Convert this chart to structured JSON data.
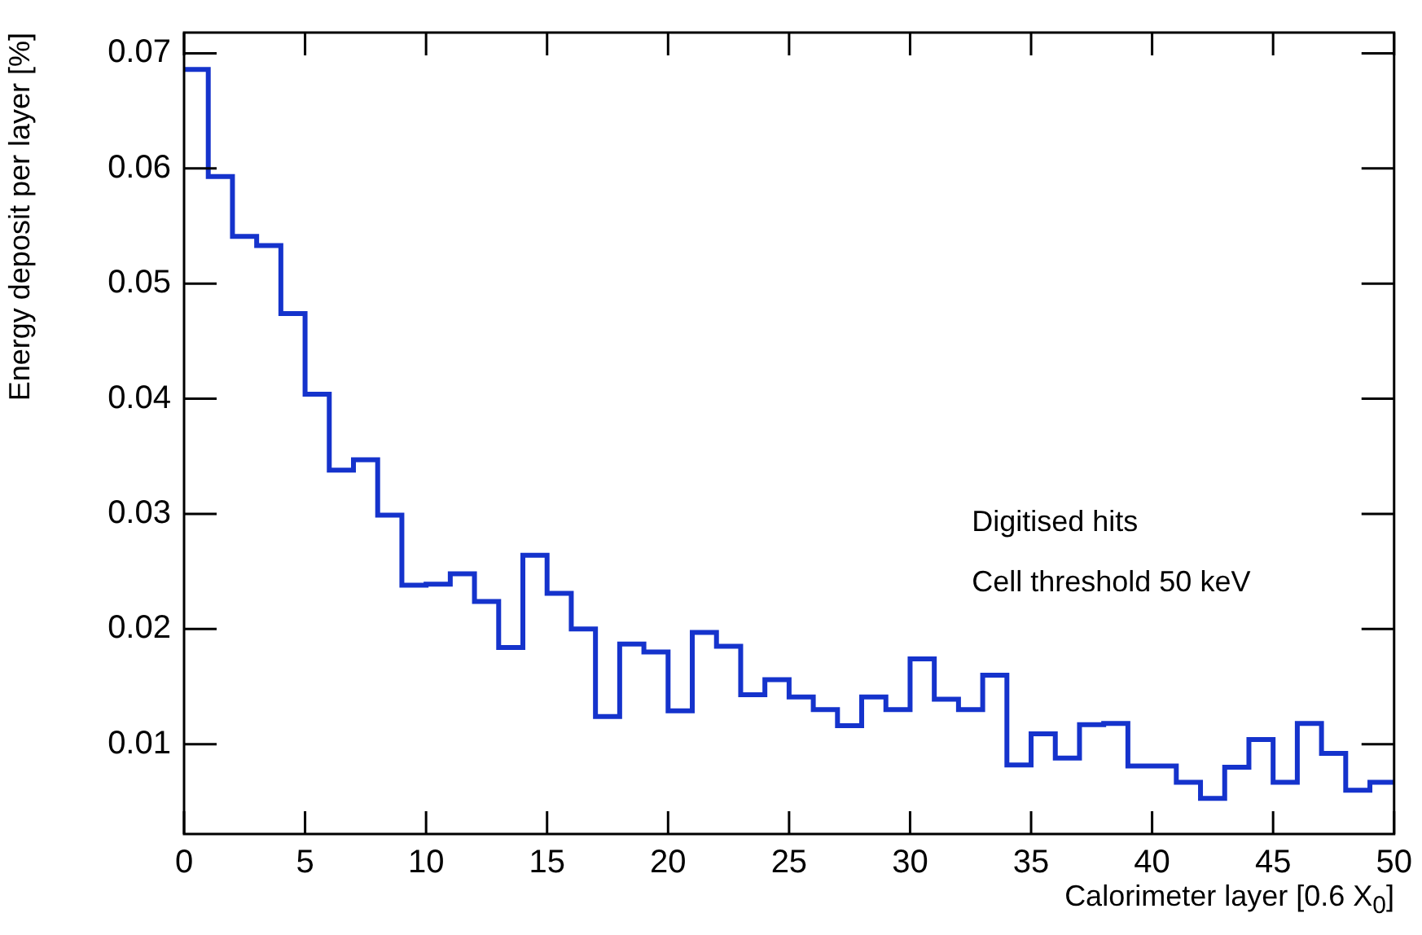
{
  "chart_data": {
    "type": "histogram",
    "xlabel": "Calorimeter layer [0.6 X$_{0}$]",
    "ylabel": "Energy deposit per layer [%]",
    "bins": [
      0,
      1,
      2,
      3,
      4,
      5,
      6,
      7,
      8,
      9,
      10,
      11,
      12,
      13,
      14,
      15,
      16,
      17,
      18,
      19,
      20,
      21,
      22,
      23,
      24,
      25,
      26,
      27,
      28,
      29,
      30,
      31,
      32,
      33,
      34,
      35,
      36,
      37,
      38,
      39,
      40,
      41,
      42,
      43,
      44,
      45,
      46,
      47,
      48,
      49,
      50
    ],
    "values": [
      0.0686,
      0.0593,
      0.0541,
      0.0533,
      0.0474,
      0.0404,
      0.0338,
      0.0347,
      0.0299,
      0.0238,
      0.0239,
      0.0248,
      0.0224,
      0.0184,
      0.0264,
      0.0231,
      0.02,
      0.0124,
      0.0187,
      0.018,
      0.0129,
      0.0197,
      0.0185,
      0.0143,
      0.0156,
      0.0141,
      0.013,
      0.0116,
      0.0141,
      0.013,
      0.0174,
      0.0139,
      0.013,
      0.016,
      0.0082,
      0.0109,
      0.0088,
      0.0117,
      0.0118,
      0.0081,
      0.0081,
      0.0067,
      0.0053,
      0.008,
      0.0104,
      0.0067,
      0.0118,
      0.0092,
      0.006,
      0.0067
    ],
    "color": "#1533cc",
    "xlim": [
      0,
      50
    ],
    "xticks": [
      0,
      5,
      10,
      15,
      20,
      25,
      30,
      35,
      40,
      45,
      50
    ],
    "ylim": [
      0.0022,
      0.0718
    ],
    "yticks": [
      0.01,
      0.02,
      0.03,
      0.04,
      0.05,
      0.06,
      0.07
    ],
    "grid": false,
    "legend": false,
    "annotations": [
      "Digitised hits",
      "Cell threshold 50 keV"
    ]
  }
}
